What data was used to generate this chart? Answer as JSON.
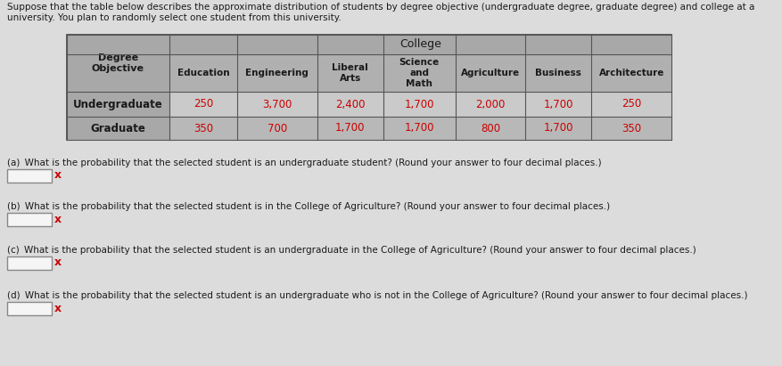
{
  "header_line1": "Suppose that the table below describes the approximate distribution of students by degree objective (undergraduate degree, graduate degree) and college at a",
  "header_line2": "university. You plan to randomly select one student from this university.",
  "college_header": "College",
  "col_headers": [
    "Degree\nObjective",
    "Education",
    "Engineering",
    "Liberal\nArts",
    "Science\nand\nMath",
    "Agriculture",
    "Business",
    "Architecture"
  ],
  "rows": [
    [
      "Undergraduate",
      "250",
      "3,700",
      "2,400",
      "1,700",
      "2,000",
      "1,700",
      "250"
    ],
    [
      "Graduate",
      "350",
      "700",
      "1,700",
      "1,700",
      "800",
      "1,700",
      "350"
    ]
  ],
  "questions": [
    "(a) What is the probability that the selected student is an undergraduate student? (Round your answer to four decimal places.)",
    "(b) What is the probability that the selected student is in the College of Agriculture? (Round your answer to four decimal places.)",
    "(c) What is the probability that the selected student is an undergraduate in the College of Agriculture? (Round your answer to four decimal places.)",
    "(d) What is the probability that the selected student is an undergraduate who is not in the College of Agriculture? (Round your answer to four decimal places.)"
  ],
  "bg_color": "#dcdcdc",
  "table_outer_border": "#555555",
  "header_bg": "#a8a8a8",
  "col_header_bg": "#b0b0b0",
  "data_row_bg1": "#c8c8c8",
  "data_row_bg2": "#b8b8b8",
  "first_col_bg": "#a8a8a8",
  "input_box_color": "#f0f0f0",
  "input_box_border": "#888888",
  "x_color": "#cc0000",
  "text_color": "#1a1a1a",
  "red_text": "#cc0000",
  "bold_first_col": true
}
